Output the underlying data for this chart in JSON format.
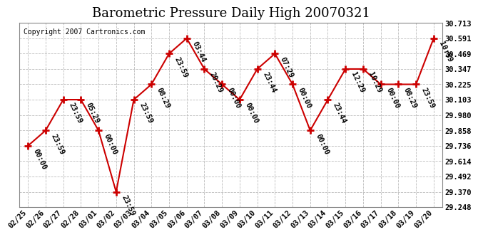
{
  "title": "Barometric Pressure Daily High 20070321",
  "copyright": "Copyright 2007 Cartronics.com",
  "x_labels": [
    "02/25",
    "02/26",
    "02/27",
    "02/28",
    "03/01",
    "03/02",
    "03/03",
    "03/04",
    "03/05",
    "03/06",
    "03/07",
    "03/08",
    "03/09",
    "03/10",
    "03/11",
    "03/12",
    "03/13",
    "03/14",
    "03/15",
    "03/16",
    "03/17",
    "03/18",
    "03/19",
    "03/20"
  ],
  "y_values": [
    29.736,
    29.858,
    30.103,
    30.103,
    29.858,
    29.37,
    30.103,
    30.225,
    30.469,
    30.591,
    30.347,
    30.225,
    30.103,
    30.347,
    30.469,
    30.225,
    29.858,
    30.103,
    30.347,
    30.347,
    30.225,
    30.225,
    30.225,
    30.591
  ],
  "point_labels": [
    "00:00",
    "23:59",
    "23:59",
    "05:29",
    "00:00",
    "23:59",
    "23:59",
    "08:29",
    "23:59",
    "03:44",
    "20:29",
    "00:00",
    "00:00",
    "23:44",
    "07:29",
    "00:00",
    "00:00",
    "23:44",
    "12:29",
    "10:29",
    "00:00",
    "08:29",
    "23:59",
    "10:59"
  ],
  "y_ticks": [
    29.248,
    29.37,
    29.492,
    29.614,
    29.736,
    29.858,
    29.98,
    30.103,
    30.225,
    30.347,
    30.469,
    30.591,
    30.713
  ],
  "y_min": 29.248,
  "y_max": 30.713,
  "line_color": "#cc0000",
  "marker_color": "#cc0000",
  "bg_color": "#ffffff",
  "grid_color": "#bbbbbb",
  "title_fontsize": 13,
  "copyright_fontsize": 7,
  "label_fontsize": 7.5,
  "xlabel_fontsize": 7.5
}
